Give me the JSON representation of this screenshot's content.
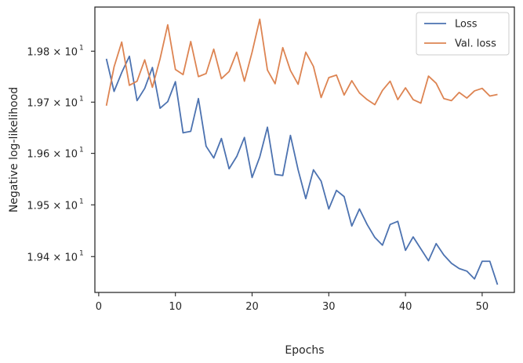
{
  "chart_data": {
    "type": "line",
    "title": "",
    "xlabel": "Epochs",
    "ylabel": "Negative log-likelihood",
    "xlim": [
      -0.5,
      54.2
    ],
    "ylim": [
      19.331,
      19.887
    ],
    "y_scale": "log",
    "grid": false,
    "legend_position": "top-right",
    "x_ticks": [
      {
        "value": 0,
        "label": "0"
      },
      {
        "value": 10,
        "label": "10"
      },
      {
        "value": 20,
        "label": "20"
      },
      {
        "value": 30,
        "label": "30"
      },
      {
        "value": 40,
        "label": "40"
      },
      {
        "value": 50,
        "label": "50"
      }
    ],
    "y_ticks": [
      {
        "value": 19.4,
        "label": "1.94 × 10",
        "exp": "1"
      },
      {
        "value": 19.5,
        "label": "1.95 × 10",
        "exp": "1"
      },
      {
        "value": 19.6,
        "label": "1.96 × 10",
        "exp": "1"
      },
      {
        "value": 19.7,
        "label": "1.97 × 10",
        "exp": "1"
      },
      {
        "value": 19.8,
        "label": "1.98 × 10",
        "exp": "1"
      }
    ],
    "x": [
      1,
      2,
      3,
      4,
      5,
      6,
      7,
      8,
      9,
      10,
      11,
      12,
      13,
      14,
      15,
      16,
      17,
      18,
      19,
      20,
      21,
      22,
      23,
      24,
      25,
      26,
      27,
      28,
      29,
      30,
      31,
      32,
      33,
      34,
      35,
      36,
      37,
      38,
      39,
      40,
      41,
      42,
      43,
      44,
      45,
      46,
      47,
      48,
      49,
      50,
      51,
      52
    ],
    "series": [
      {
        "name": "Loss",
        "color": "#4c72b0",
        "values": [
          19.785,
          19.721,
          19.758,
          19.79,
          19.703,
          19.727,
          19.768,
          19.688,
          19.701,
          19.74,
          19.64,
          19.643,
          19.707,
          19.614,
          19.591,
          19.629,
          19.57,
          19.594,
          19.631,
          19.553,
          19.593,
          19.651,
          19.559,
          19.557,
          19.635,
          19.568,
          19.512,
          19.568,
          19.546,
          19.492,
          19.528,
          19.516,
          19.459,
          19.492,
          19.462,
          19.437,
          19.422,
          19.462,
          19.468,
          19.412,
          19.438,
          19.415,
          19.392,
          19.425,
          19.403,
          19.387,
          19.377,
          19.372,
          19.357,
          19.391,
          19.391,
          19.346
        ]
      },
      {
        "name": "Val. loss",
        "color": "#dd8452",
        "values": [
          19.693,
          19.769,
          19.818,
          19.733,
          19.741,
          19.783,
          19.729,
          19.785,
          19.852,
          19.764,
          19.754,
          19.819,
          19.75,
          19.756,
          19.804,
          19.746,
          19.76,
          19.798,
          19.741,
          19.798,
          19.863,
          19.763,
          19.736,
          19.807,
          19.762,
          19.735,
          19.798,
          19.77,
          19.709,
          19.748,
          19.753,
          19.714,
          19.742,
          19.718,
          19.705,
          19.695,
          19.723,
          19.741,
          19.705,
          19.728,
          19.705,
          19.698,
          19.751,
          19.737,
          19.707,
          19.703,
          19.719,
          19.708,
          19.722,
          19.727,
          19.712,
          19.715
        ]
      }
    ]
  }
}
